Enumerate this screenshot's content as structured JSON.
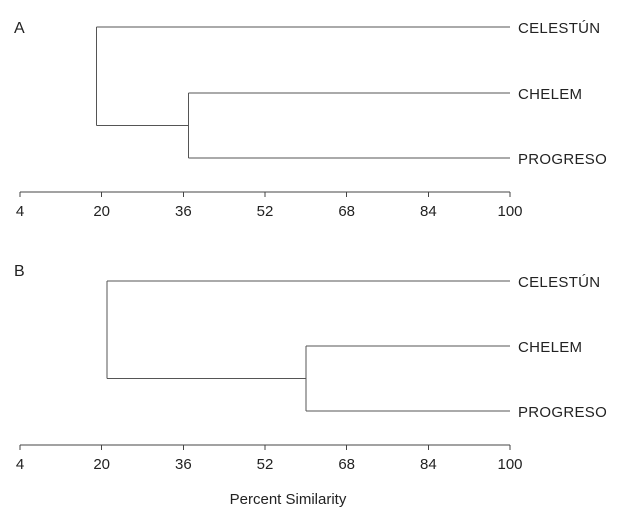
{
  "chart_data": [
    {
      "type": "dendrogram",
      "panel": "A",
      "leaves": [
        "CELESTÚN",
        "CHELEM",
        "PROGRESO"
      ],
      "merges": [
        {
          "members": [
            "CHELEM",
            "PROGRESO"
          ],
          "similarity": 37
        },
        {
          "members": [
            "CELESTÚN",
            "CHELEM+PROGRESO"
          ],
          "similarity": 19
        }
      ],
      "ticks": [
        4,
        20,
        36,
        52,
        68,
        84,
        100
      ],
      "xlim": [
        4,
        100
      ],
      "grid": false
    },
    {
      "type": "dendrogram",
      "panel": "B",
      "leaves": [
        "CELESTÚN",
        "CHELEM",
        "PROGRESO"
      ],
      "merges": [
        {
          "members": [
            "CHELEM",
            "PROGRESO"
          ],
          "similarity": 60
        },
        {
          "members": [
            "CELESTÚN",
            "CHELEM+PROGRESO"
          ],
          "similarity": 21
        }
      ],
      "ticks": [
        4,
        20,
        36,
        52,
        68,
        84,
        100
      ],
      "xlim": [
        4,
        100
      ],
      "grid": false
    }
  ],
  "xlabel": "Percent Similarity",
  "colors": {
    "lines": "#555555",
    "text": "#222222",
    "background": "#ffffff"
  }
}
